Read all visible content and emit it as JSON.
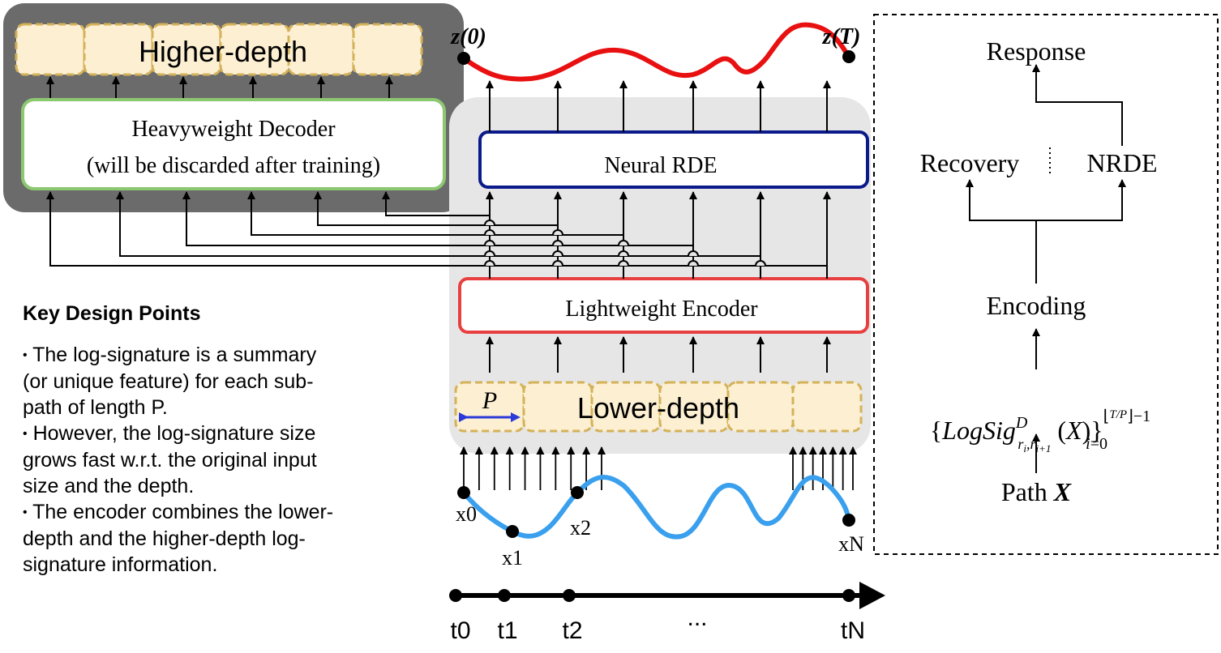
{
  "top_left": {
    "higher_depth_label": "Higher-depth",
    "decoder_line1": "Heavyweight Decoder",
    "decoder_line2": "(will be discarded after training)"
  },
  "center": {
    "neural_rde_label": "Neural RDE",
    "encoder_label": "Lightweight Encoder",
    "lower_depth_label": "Lower-depth",
    "p_label": "P",
    "z0_label": "z(0)",
    "zT_label": "z(T)",
    "x_labels": [
      "x0",
      "x1",
      "x2",
      "xN"
    ],
    "t_labels": [
      "t0",
      "t1",
      "t2",
      "...",
      "tN"
    ]
  },
  "right_panel": {
    "response": "Response",
    "recovery": "Recovery",
    "nrde": "NRDE",
    "encoding": "Encoding",
    "logsig": "{LogSig^D_{r_i, r_{i+1}}(X)}_{i=0}^{⌊T/P⌋-1}",
    "path": "Path X"
  },
  "design_points": {
    "title": "Key Design Points",
    "points": [
      "The log-signature is a summary\n(or unique feature) for each sub-\npath of length P.",
      "However, the log-signature size\ngrows fast w.r.t. the original input\nsize and the depth.",
      "The encoder combines the lower-\ndepth and the higher-depth log-\nsignature information."
    ]
  },
  "colors": {
    "decoder_panel": "#6b6b6b",
    "decoder_border": "#8cc870",
    "center_panel": "#e6e6e6",
    "neural_rde_border": "#0a1a8a",
    "encoder_border": "#e84040",
    "block_fill": "#fdf0d2",
    "block_border": "#d4b25a",
    "z_curve": "#e81010",
    "x_curve": "#3aa0ee",
    "p_arrow": "#2a3ad8"
  }
}
